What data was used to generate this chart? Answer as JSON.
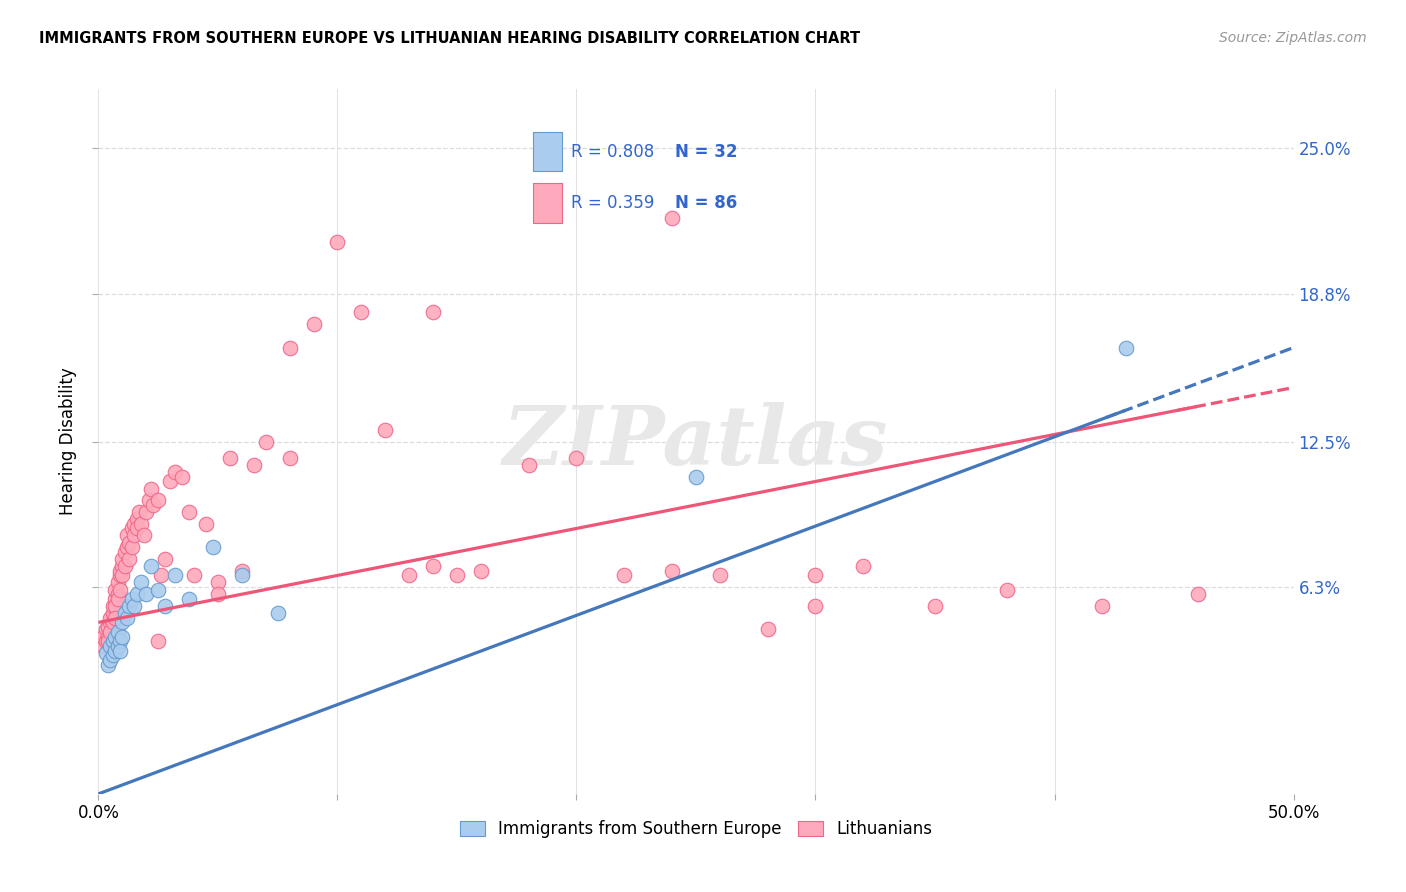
{
  "title": "IMMIGRANTS FROM SOUTHERN EUROPE VS LITHUANIAN HEARING DISABILITY CORRELATION CHART",
  "source": "Source: ZipAtlas.com",
  "ylabel": "Hearing Disability",
  "ytick_labels": [
    "6.3%",
    "12.5%",
    "18.8%",
    "25.0%"
  ],
  "ytick_values": [
    0.063,
    0.125,
    0.188,
    0.25
  ],
  "xtick_values": [
    0.0,
    0.1,
    0.2,
    0.3,
    0.4,
    0.5
  ],
  "xlim": [
    0.0,
    0.5
  ],
  "ylim": [
    -0.025,
    0.275
  ],
  "legend1_r": "0.808",
  "legend1_n": "32",
  "legend2_r": "0.359",
  "legend2_n": "86",
  "legend_label1": "Immigrants from Southern Europe",
  "legend_label2": "Lithuanians",
  "blue_color": "#aaccee",
  "pink_color": "#ffaabc",
  "blue_edge_color": "#6699cc",
  "pink_edge_color": "#ee6688",
  "blue_line_color": "#4477bb",
  "pink_line_color": "#ee5577",
  "r_value_color": "#3366cc",
  "grid_color": "#dddddd",
  "blue_intercept": -0.025,
  "blue_slope": 0.38,
  "pink_intercept": 0.048,
  "pink_slope": 0.2,
  "blue_x": [
    0.003,
    0.004,
    0.005,
    0.005,
    0.006,
    0.006,
    0.007,
    0.007,
    0.008,
    0.008,
    0.009,
    0.009,
    0.01,
    0.01,
    0.011,
    0.012,
    0.013,
    0.014,
    0.015,
    0.016,
    0.018,
    0.02,
    0.022,
    0.025,
    0.028,
    0.032,
    0.038,
    0.048,
    0.06,
    0.075,
    0.25,
    0.43
  ],
  "blue_y": [
    0.035,
    0.03,
    0.038,
    0.032,
    0.04,
    0.034,
    0.042,
    0.036,
    0.038,
    0.044,
    0.04,
    0.036,
    0.048,
    0.042,
    0.052,
    0.05,
    0.055,
    0.058,
    0.055,
    0.06,
    0.065,
    0.06,
    0.072,
    0.062,
    0.055,
    0.068,
    0.058,
    0.08,
    0.068,
    0.052,
    0.11,
    0.165
  ],
  "pink_x": [
    0.002,
    0.002,
    0.003,
    0.003,
    0.004,
    0.004,
    0.004,
    0.005,
    0.005,
    0.005,
    0.006,
    0.006,
    0.006,
    0.007,
    0.007,
    0.007,
    0.007,
    0.008,
    0.008,
    0.008,
    0.009,
    0.009,
    0.009,
    0.01,
    0.01,
    0.01,
    0.011,
    0.011,
    0.012,
    0.012,
    0.013,
    0.013,
    0.014,
    0.014,
    0.015,
    0.015,
    0.016,
    0.016,
    0.017,
    0.018,
    0.019,
    0.02,
    0.021,
    0.022,
    0.023,
    0.025,
    0.026,
    0.028,
    0.03,
    0.032,
    0.035,
    0.038,
    0.04,
    0.045,
    0.05,
    0.055,
    0.06,
    0.065,
    0.07,
    0.08,
    0.09,
    0.1,
    0.11,
    0.12,
    0.13,
    0.14,
    0.15,
    0.16,
    0.18,
    0.2,
    0.22,
    0.24,
    0.26,
    0.28,
    0.3,
    0.32,
    0.35,
    0.38,
    0.42,
    0.46,
    0.24,
    0.3,
    0.14,
    0.08,
    0.05,
    0.025
  ],
  "pink_y": [
    0.038,
    0.042,
    0.04,
    0.045,
    0.042,
    0.046,
    0.04,
    0.048,
    0.044,
    0.05,
    0.052,
    0.048,
    0.055,
    0.058,
    0.055,
    0.062,
    0.05,
    0.06,
    0.065,
    0.058,
    0.068,
    0.062,
    0.07,
    0.072,
    0.068,
    0.075,
    0.078,
    0.072,
    0.08,
    0.085,
    0.075,
    0.082,
    0.088,
    0.08,
    0.09,
    0.085,
    0.092,
    0.088,
    0.095,
    0.09,
    0.085,
    0.095,
    0.1,
    0.105,
    0.098,
    0.1,
    0.068,
    0.075,
    0.108,
    0.112,
    0.11,
    0.095,
    0.068,
    0.09,
    0.065,
    0.118,
    0.07,
    0.115,
    0.125,
    0.165,
    0.175,
    0.21,
    0.18,
    0.13,
    0.068,
    0.072,
    0.068,
    0.07,
    0.115,
    0.118,
    0.068,
    0.07,
    0.068,
    0.045,
    0.068,
    0.072,
    0.055,
    0.062,
    0.055,
    0.06,
    0.22,
    0.055,
    0.18,
    0.118,
    0.06,
    0.04
  ]
}
